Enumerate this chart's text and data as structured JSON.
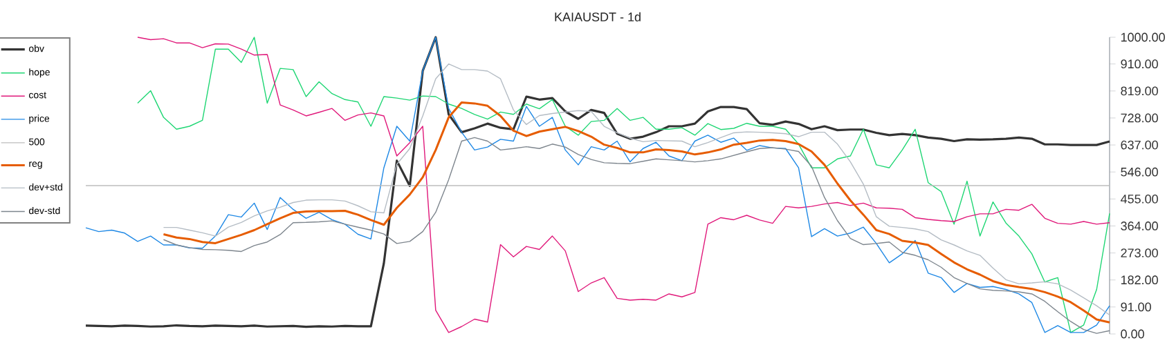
{
  "chart_data": {
    "type": "line",
    "title": "KAIAUSDT - 1d",
    "categories": [
      null,
      null,
      null,
      null,
      null,
      null,
      null,
      null,
      null,
      null,
      null,
      null,
      null,
      null,
      null,
      null,
      null,
      null,
      null,
      null,
      null,
      null,
      null,
      null,
      null,
      null,
      null,
      null,
      null,
      null,
      null,
      null,
      null,
      null,
      null,
      null,
      null,
      null,
      null,
      null,
      null,
      null,
      null,
      null,
      null,
      null,
      null,
      null,
      null,
      null,
      null,
      null,
      null,
      null,
      null,
      null,
      null,
      null,
      null,
      null,
      null,
      null,
      null,
      null,
      null,
      null,
      null,
      null,
      null,
      null,
      null,
      null,
      null,
      null,
      null,
      null,
      null,
      null,
      null,
      null
    ],
    "series": [
      {
        "name": "obv",
        "color": "#333333",
        "values": [
          28,
          27,
          26,
          28,
          27,
          25,
          26,
          29,
          27,
          26,
          28,
          27,
          26,
          28,
          25,
          26,
          27,
          24,
          26,
          25,
          27,
          26,
          26,
          238,
          584,
          499,
          887,
          1000,
          740,
          680,
          693,
          709,
          695,
          690,
          800,
          790,
          795,
          750,
          725,
          755,
          745,
          675,
          658,
          665,
          680,
          700,
          700,
          709,
          750,
          765,
          765,
          758,
          710,
          705,
          716,
          708,
          690,
          700,
          687,
          689,
          689,
          678,
          670,
          674,
          670,
          662,
          658,
          650,
          656,
          655,
          656,
          658,
          662,
          658,
          639,
          639,
          637,
          637,
          637,
          649
        ]
      },
      {
        "name": "hope",
        "color": "#1ed673",
        "values": [
          null,
          null,
          null,
          null,
          778,
          820,
          730,
          690,
          700,
          720,
          960,
          960,
          915,
          1000,
          778,
          895,
          891,
          800,
          850,
          810,
          790,
          782,
          700,
          800,
          795,
          788,
          802,
          800,
          775,
          760,
          740,
          724,
          748,
          740,
          775,
          759,
          790,
          700,
          670,
          716,
          720,
          760,
          720,
          730,
          690,
          690,
          695,
          670,
          709,
          689,
          693,
          710,
          700,
          700,
          690,
          640,
          560,
          560,
          590,
          600,
          690,
          570,
          560,
          620,
          690,
          510,
          480,
          370,
          515,
          330,
          445,
          374,
          330,
          270,
          175,
          190,
          5,
          30,
          150,
          406
        ]
      },
      {
        "name": "cost",
        "color": "#e0187a",
        "values": [
          null,
          null,
          null,
          null,
          1000,
          992,
          995,
          981,
          981,
          965,
          978,
          977,
          960,
          940,
          942,
          772,
          755,
          735,
          747,
          760,
          720,
          738,
          745,
          735,
          600,
          645,
          700,
          80,
          5,
          25,
          50,
          40,
          301,
          260,
          295,
          285,
          330,
          280,
          143,
          172,
          190,
          120,
          114,
          117,
          114,
          135,
          125,
          140,
          370,
          392,
          385,
          400,
          384,
          373,
          430,
          425,
          430,
          438,
          443,
          433,
          441,
          425,
          424,
          420,
          392,
          386,
          382,
          379,
          395,
          405,
          405,
          420,
          417,
          437,
          390,
          373,
          370,
          379,
          370,
          375
        ]
      },
      {
        "name": "price",
        "color": "#1e88e5",
        "values": [
          358,
          345,
          350,
          340,
          312,
          330,
          300,
          300,
          290,
          289,
          330,
          402,
          394,
          441,
          352,
          460,
          420,
          390,
          410,
          385,
          370,
          336,
          320,
          560,
          700,
          650,
          887,
          1000,
          760,
          680,
          620,
          630,
          656,
          650,
          767,
          700,
          730,
          620,
          570,
          631,
          620,
          650,
          580,
          625,
          646,
          600,
          584,
          650,
          670,
          646,
          660,
          619,
          635,
          627,
          625,
          560,
          328,
          355,
          330,
          340,
          360,
          305,
          240,
          270,
          315,
          205,
          190,
          140,
          170,
          157,
          160,
          150,
          135,
          106,
          5,
          28,
          5,
          5,
          30,
          95
        ]
      },
      {
        "name": "500",
        "color": "#bdbdbd",
        "values": [
          500,
          500,
          500,
          500,
          500,
          500,
          500,
          500,
          500,
          500,
          500,
          500,
          500,
          500,
          500,
          500,
          500,
          500,
          500,
          500,
          500,
          500,
          500,
          500,
          500,
          500,
          500,
          500,
          500,
          500,
          500,
          500,
          500,
          500,
          500,
          500,
          500,
          500,
          500,
          500,
          500,
          500,
          500,
          500,
          500,
          500,
          500,
          500,
          500,
          500,
          500,
          500,
          500,
          500,
          500,
          500,
          500,
          500,
          500,
          500,
          500,
          500,
          500,
          500,
          500,
          500,
          500,
          500,
          500,
          500,
          500,
          500,
          500,
          500,
          500,
          500,
          500,
          500,
          500,
          500
        ]
      },
      {
        "name": "reg",
        "color": "#e65c00",
        "values": [
          null,
          null,
          null,
          null,
          null,
          null,
          336,
          325,
          320,
          310,
          306,
          320,
          334,
          350,
          370,
          390,
          408,
          413,
          414,
          414,
          415,
          402,
          384,
          368,
          425,
          470,
          528,
          620,
          730,
          780,
          777,
          769,
          735,
          685,
          667,
          682,
          690,
          698,
          684,
          665,
          638,
          627,
          612,
          612,
          622,
          620,
          615,
          605,
          612,
          622,
          638,
          644,
          652,
          654,
          650,
          640,
          615,
          570,
          507,
          450,
          402,
          350,
          337,
          314,
          308,
          300,
          270,
          241,
          218,
          200,
          178,
          165,
          158,
          152,
          141,
          126,
          107,
          79,
          49,
          39
        ]
      },
      {
        "name": "dev+std",
        "color": "#b4bcc4",
        "values": [
          null,
          null,
          null,
          null,
          null,
          null,
          359,
          359,
          350,
          341,
          330,
          360,
          376,
          398,
          415,
          427,
          443,
          451,
          452,
          452,
          448,
          432,
          412,
          408,
          572,
          625,
          735,
          860,
          910,
          891,
          891,
          886,
          860,
          755,
          706,
          736,
          743,
          748,
          753,
          750,
          700,
          678,
          660,
          648,
          652,
          651,
          650,
          631,
          645,
          662,
          678,
          681,
          680,
          678,
          675,
          665,
          680,
          680,
          640,
          580,
          505,
          395,
          363,
          359,
          354,
          345,
          317,
          300,
          280,
          265,
          222,
          183,
          169,
          172,
          176,
          169,
          148,
          122,
          95,
          64
        ]
      },
      {
        "name": "dev-std",
        "color": "#7d858d",
        "values": [
          null,
          null,
          null,
          null,
          null,
          null,
          318,
          300,
          291,
          285,
          284,
          282,
          278,
          298,
          310,
          335,
          375,
          376,
          378,
          381,
          370,
          360,
          350,
          337,
          305,
          312,
          345,
          410,
          520,
          650,
          662,
          650,
          620,
          625,
          631,
          625,
          640,
          630,
          605,
          588,
          577,
          575,
          574,
          582,
          590,
          587,
          584,
          580,
          584,
          590,
          602,
          614,
          625,
          628,
          623,
          615,
          565,
          460,
          382,
          322,
          301,
          305,
          310,
          275,
          265,
          250,
          225,
          190,
          170,
          152,
          147,
          145,
          142,
          135,
          110,
          75,
          42,
          15,
          2,
          11
        ]
      }
    ],
    "ylim": [
      0,
      1000
    ],
    "yticks": [
      {
        "value": 0,
        "label": "0.00"
      },
      {
        "value": 91,
        "label": "91.00"
      },
      {
        "value": 182,
        "label": "182.00"
      },
      {
        "value": 273,
        "label": "273.00"
      },
      {
        "value": 364,
        "label": "364.00"
      },
      {
        "value": 455,
        "label": "455.00"
      },
      {
        "value": 546,
        "label": "546.00"
      },
      {
        "value": 637,
        "label": "637.00"
      },
      {
        "value": 728,
        "label": "728.00"
      },
      {
        "value": 819,
        "label": "819.00"
      },
      {
        "value": 910,
        "label": "910.00"
      },
      {
        "value": 1000,
        "label": "1000.00"
      }
    ],
    "tick_labels": "y",
    "legend": "left"
  }
}
